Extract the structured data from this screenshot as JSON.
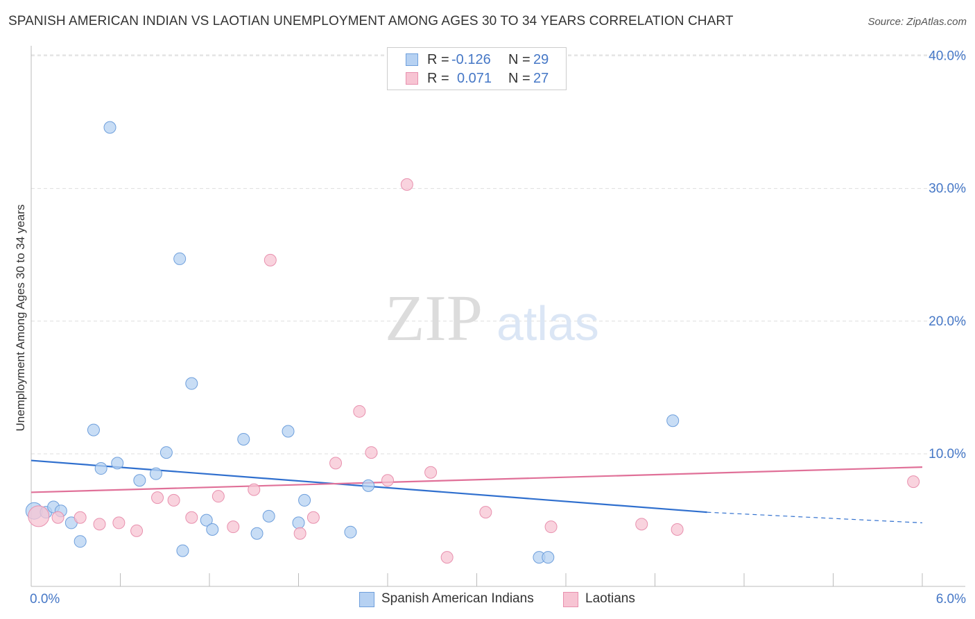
{
  "header": {
    "title": "SPANISH AMERICAN INDIAN VS LAOTIAN UNEMPLOYMENT AMONG AGES 30 TO 34 YEARS CORRELATION CHART",
    "source": "Source: ZipAtlas.com"
  },
  "watermark": {
    "zip": "ZIP",
    "atlas": "atlas"
  },
  "legend": {
    "r_label": "R =",
    "n_label": "N =",
    "series": [
      {
        "name": "Spanish American Indians",
        "r": "-0.126",
        "n": "29"
      },
      {
        "name": "Laotians",
        "r": "0.071",
        "n": "27"
      }
    ]
  },
  "colors": {
    "blue_fill": "#b6d1f2",
    "blue_stroke": "#6e9fdc",
    "blue_line": "#2f6fce",
    "pink_fill": "#f7c4d3",
    "pink_stroke": "#e890ae",
    "pink_line": "#e07098",
    "tick_label": "#4577c6",
    "grid": "#dddddd"
  },
  "chart_data": {
    "type": "scatter",
    "title": "SPANISH AMERICAN INDIAN VS LAOTIAN UNEMPLOYMENT AMONG AGES 30 TO 34 YEARS CORRELATION CHART",
    "xlabel": "",
    "ylabel": "Unemployment Among Ages 30 to 34 years",
    "xlim": [
      0,
      6.0
    ],
    "ylim": [
      0,
      42
    ],
    "x_tick_labels": [
      "0.0%",
      "6.0%"
    ],
    "y_ticks": [
      10,
      20,
      30,
      40
    ],
    "y_tick_labels": [
      "10.0%",
      "20.0%",
      "30.0%",
      "40.0%"
    ],
    "grid": true,
    "series": [
      {
        "name": "Spanish American Indians",
        "points": [
          {
            "x": 0.02,
            "y": 5.7
          },
          {
            "x": 0.1,
            "y": 5.6
          },
          {
            "x": 0.15,
            "y": 6.0
          },
          {
            "x": 0.2,
            "y": 5.7
          },
          {
            "x": 0.27,
            "y": 4.8
          },
          {
            "x": 0.33,
            "y": 3.4
          },
          {
            "x": 0.42,
            "y": 11.8
          },
          {
            "x": 0.47,
            "y": 8.9
          },
          {
            "x": 0.53,
            "y": 34.6
          },
          {
            "x": 0.58,
            "y": 9.3
          },
          {
            "x": 0.73,
            "y": 8.0
          },
          {
            "x": 0.84,
            "y": 8.5
          },
          {
            "x": 0.91,
            "y": 10.1
          },
          {
            "x": 1.0,
            "y": 24.7
          },
          {
            "x": 1.02,
            "y": 2.7
          },
          {
            "x": 1.08,
            "y": 15.3
          },
          {
            "x": 1.18,
            "y": 5.0
          },
          {
            "x": 1.22,
            "y": 4.3
          },
          {
            "x": 1.43,
            "y": 11.1
          },
          {
            "x": 1.52,
            "y": 4.0
          },
          {
            "x": 1.6,
            "y": 5.3
          },
          {
            "x": 1.73,
            "y": 11.7
          },
          {
            "x": 1.8,
            "y": 4.8
          },
          {
            "x": 1.84,
            "y": 6.5
          },
          {
            "x": 2.15,
            "y": 4.1
          },
          {
            "x": 2.27,
            "y": 7.6
          },
          {
            "x": 3.42,
            "y": 2.2
          },
          {
            "x": 3.48,
            "y": 2.2
          },
          {
            "x": 4.32,
            "y": 12.5
          }
        ],
        "trend": {
          "x0": 0.0,
          "y0": 9.5,
          "x1": 4.55,
          "y1": 5.6,
          "dash_x1": 6.0,
          "dash_y1": 4.8
        }
      },
      {
        "name": "Laotians",
        "points": [
          {
            "x": 0.05,
            "y": 5.3
          },
          {
            "x": 0.18,
            "y": 5.2
          },
          {
            "x": 0.33,
            "y": 5.2
          },
          {
            "x": 0.46,
            "y": 4.7
          },
          {
            "x": 0.59,
            "y": 4.8
          },
          {
            "x": 0.71,
            "y": 4.2
          },
          {
            "x": 0.85,
            "y": 6.7
          },
          {
            "x": 0.96,
            "y": 6.5
          },
          {
            "x": 1.08,
            "y": 5.2
          },
          {
            "x": 1.26,
            "y": 6.8
          },
          {
            "x": 1.36,
            "y": 4.5
          },
          {
            "x": 1.5,
            "y": 7.3
          },
          {
            "x": 1.61,
            "y": 24.6
          },
          {
            "x": 1.81,
            "y": 4.0
          },
          {
            "x": 1.9,
            "y": 5.2
          },
          {
            "x": 2.05,
            "y": 9.3
          },
          {
            "x": 2.21,
            "y": 13.2
          },
          {
            "x": 2.29,
            "y": 10.1
          },
          {
            "x": 2.4,
            "y": 8.0
          },
          {
            "x": 2.53,
            "y": 30.3
          },
          {
            "x": 2.69,
            "y": 8.6
          },
          {
            "x": 2.8,
            "y": 2.2
          },
          {
            "x": 3.06,
            "y": 5.6
          },
          {
            "x": 3.5,
            "y": 4.5
          },
          {
            "x": 4.11,
            "y": 4.7
          },
          {
            "x": 4.35,
            "y": 4.3
          },
          {
            "x": 5.94,
            "y": 7.9
          }
        ],
        "trend": {
          "x0": 0.0,
          "y0": 7.1,
          "x1": 6.0,
          "y1": 9.0
        }
      }
    ]
  }
}
